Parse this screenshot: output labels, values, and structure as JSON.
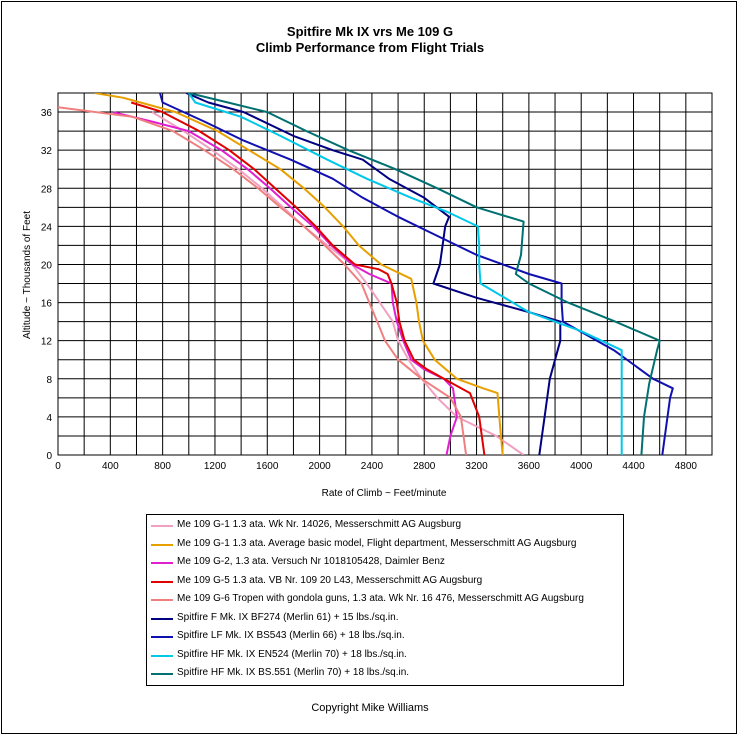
{
  "chart_data": {
    "type": "line",
    "title": "Spitfire Mk IX vrs Me 109 G",
    "subtitle": "Climb Performance from Flight Trials",
    "xlabel": "Rate of Climb ~ Feet/minute",
    "ylabel": "Altitude ~ Thousands of Feet",
    "xlim": [
      0,
      5000
    ],
    "ylim": [
      0,
      38
    ],
    "xticks": [
      0,
      400,
      800,
      1200,
      1600,
      2000,
      2400,
      2800,
      3200,
      3600,
      4000,
      4400,
      4800
    ],
    "yticks": [
      0,
      4,
      8,
      12,
      16,
      20,
      24,
      28,
      32,
      36
    ],
    "grid": true,
    "legend_position": "bottom",
    "series": [
      {
        "name": "Me 109 G-1 1.3 ata.  Wk Nr. 14026,  Messerschmitt AG Augsburg",
        "color": "#f0a0c0",
        "points": [
          [
            3560,
            0
          ],
          [
            3350,
            2
          ],
          [
            3050,
            4
          ],
          [
            2900,
            6
          ],
          [
            2780,
            8
          ],
          [
            2680,
            10
          ],
          [
            2600,
            12
          ],
          [
            2560,
            14
          ],
          [
            2460,
            16
          ],
          [
            2360,
            18
          ],
          [
            2250,
            20
          ],
          [
            2060,
            22
          ],
          [
            1880,
            24
          ],
          [
            1720,
            26
          ],
          [
            1560,
            28
          ],
          [
            1380,
            30
          ],
          [
            1180,
            32
          ],
          [
            960,
            34
          ],
          [
            720,
            36
          ]
        ]
      },
      {
        "name": "Me 109 G-1 1.3 ata.   Average basic model, Flight department, Messerschmitt AG Augsburg",
        "color": "#e8a000",
        "points": [
          [
            3400,
            0
          ],
          [
            3380,
            3
          ],
          [
            3360,
            6.5
          ],
          [
            3250,
            7
          ],
          [
            3050,
            8
          ],
          [
            2880,
            10
          ],
          [
            2790,
            12
          ],
          [
            2760,
            14
          ],
          [
            2740,
            16
          ],
          [
            2700,
            18.5
          ],
          [
            2470,
            20
          ],
          [
            2300,
            22
          ],
          [
            2180,
            24
          ],
          [
            2040,
            26
          ],
          [
            1880,
            28
          ],
          [
            1700,
            30
          ],
          [
            1460,
            32
          ],
          [
            1220,
            34
          ],
          [
            900,
            36
          ],
          [
            500,
            37.5
          ],
          [
            280,
            38
          ]
        ]
      },
      {
        "name": "Me 109 G-2, 1.3 ata.  Versuch Nr 1018105428,  Daimler Benz",
        "color": "#e020d0",
        "points": [
          [
            2970,
            0
          ],
          [
            3000,
            2
          ],
          [
            3050,
            4
          ],
          [
            3020,
            7
          ],
          [
            2950,
            8
          ],
          [
            2800,
            9
          ],
          [
            2700,
            10
          ],
          [
            2640,
            12
          ],
          [
            2590,
            14
          ],
          [
            2560,
            16
          ],
          [
            2550,
            18
          ],
          [
            2380,
            19
          ],
          [
            2250,
            20
          ],
          [
            2090,
            22
          ],
          [
            1950,
            24
          ],
          [
            1780,
            26
          ],
          [
            1620,
            28
          ],
          [
            1450,
            30
          ],
          [
            1250,
            32
          ],
          [
            1000,
            34
          ],
          [
            720,
            35
          ],
          [
            420,
            36
          ]
        ]
      },
      {
        "name": "Me 109 G-5  1.3 ata.  VB Nr. 109 20 L43, Messerschmitt AG Augsburg",
        "color": "#e00000",
        "points": [
          [
            3260,
            0
          ],
          [
            3240,
            2
          ],
          [
            3220,
            4
          ],
          [
            3150,
            6.5
          ],
          [
            2950,
            8
          ],
          [
            2820,
            9
          ],
          [
            2720,
            10
          ],
          [
            2650,
            12
          ],
          [
            2610,
            14
          ],
          [
            2590,
            16
          ],
          [
            2550,
            18
          ],
          [
            2520,
            19
          ],
          [
            2450,
            19.5
          ],
          [
            2270,
            20
          ],
          [
            2100,
            22
          ],
          [
            1970,
            24
          ],
          [
            1820,
            26
          ],
          [
            1660,
            28
          ],
          [
            1500,
            30
          ],
          [
            1310,
            32
          ],
          [
            1080,
            34
          ],
          [
            800,
            36
          ],
          [
            560,
            37
          ]
        ]
      },
      {
        "name": "Me 109 G-6 Tropen with gondola guns, 1.3 ata. Wk Nr. 16 476, Messerschmitt AG Augsburg",
        "color": "#f08080",
        "points": [
          [
            3120,
            0
          ],
          [
            3100,
            2
          ],
          [
            3080,
            4
          ],
          [
            3000,
            6
          ],
          [
            2780,
            8
          ],
          [
            2600,
            10
          ],
          [
            2500,
            12
          ],
          [
            2440,
            14
          ],
          [
            2380,
            16
          ],
          [
            2320,
            18
          ],
          [
            2190,
            20
          ],
          [
            2040,
            22
          ],
          [
            1880,
            24
          ],
          [
            1700,
            26
          ],
          [
            1530,
            28
          ],
          [
            1340,
            30
          ],
          [
            1120,
            32
          ],
          [
            880,
            34
          ],
          [
            570,
            35.5
          ],
          [
            0,
            36.5
          ]
        ]
      },
      {
        "name": "Spitfire F Mk. IX BF274 (Merlin 61) + 15 lbs./sq.in.",
        "color": "#000080",
        "points": [
          [
            3680,
            0
          ],
          [
            3720,
            4
          ],
          [
            3760,
            8
          ],
          [
            3840,
            12
          ],
          [
            3840,
            14
          ],
          [
            3600,
            15
          ],
          [
            3200,
            16.5
          ],
          [
            2870,
            18
          ],
          [
            2920,
            20
          ],
          [
            2940,
            22
          ],
          [
            2960,
            24
          ],
          [
            2990,
            25
          ],
          [
            2800,
            27
          ],
          [
            2530,
            29
          ],
          [
            2330,
            31
          ],
          [
            2100,
            32
          ],
          [
            1800,
            33.5
          ],
          [
            1420,
            36
          ],
          [
            1150,
            37
          ],
          [
            980,
            38
          ]
        ]
      },
      {
        "name": "Spitfire LF Mk. IX BS543 (Merlin 66) + 18 lbs./sq.in.",
        "color": "#1010b0",
        "points": [
          [
            4620,
            0
          ],
          [
            4650,
            3
          ],
          [
            4680,
            6
          ],
          [
            4700,
            7
          ],
          [
            4550,
            8
          ],
          [
            4250,
            11
          ],
          [
            3860,
            14
          ],
          [
            3850,
            16
          ],
          [
            3850,
            18
          ],
          [
            3600,
            19
          ],
          [
            3200,
            21
          ],
          [
            2900,
            23
          ],
          [
            2600,
            25
          ],
          [
            2330,
            27
          ],
          [
            2100,
            29
          ],
          [
            1780,
            31
          ],
          [
            1420,
            33
          ],
          [
            1120,
            35
          ],
          [
            800,
            37
          ],
          [
            780,
            38
          ]
        ]
      },
      {
        "name": "Spitfire HF Mk. IX  EN524 (Merlin 70) + 18 lbs./sq.in.",
        "color": "#00c8e8",
        "points": [
          [
            4310,
            0
          ],
          [
            4310,
            5
          ],
          [
            4310,
            11
          ],
          [
            4000,
            13
          ],
          [
            3600,
            15
          ],
          [
            3230,
            18
          ],
          [
            3220,
            20
          ],
          [
            3220,
            22
          ],
          [
            3210,
            24
          ],
          [
            2980,
            25.5
          ],
          [
            2700,
            27
          ],
          [
            2360,
            29
          ],
          [
            2060,
            31
          ],
          [
            1700,
            33.5
          ],
          [
            1400,
            35.5
          ],
          [
            1050,
            37
          ],
          [
            1000,
            38
          ]
        ]
      },
      {
        "name": "Spitfire HF Mk. IX  BS.551 (Merlin 70) + 18 lbs./sq.in.",
        "color": "#007070",
        "points": [
          [
            4460,
            0
          ],
          [
            4480,
            4
          ],
          [
            4520,
            7.5
          ],
          [
            4580,
            11
          ],
          [
            4600,
            12
          ],
          [
            4260,
            14
          ],
          [
            3900,
            16
          ],
          [
            3600,
            18
          ],
          [
            3500,
            19
          ],
          [
            3540,
            21
          ],
          [
            3560,
            24.5
          ],
          [
            3200,
            26
          ],
          [
            2900,
            28
          ],
          [
            2580,
            30
          ],
          [
            2220,
            32
          ],
          [
            1900,
            34
          ],
          [
            1600,
            36
          ],
          [
            1300,
            37
          ],
          [
            1000,
            38
          ]
        ]
      }
    ]
  },
  "copyright": "Copyright Mike Williams"
}
